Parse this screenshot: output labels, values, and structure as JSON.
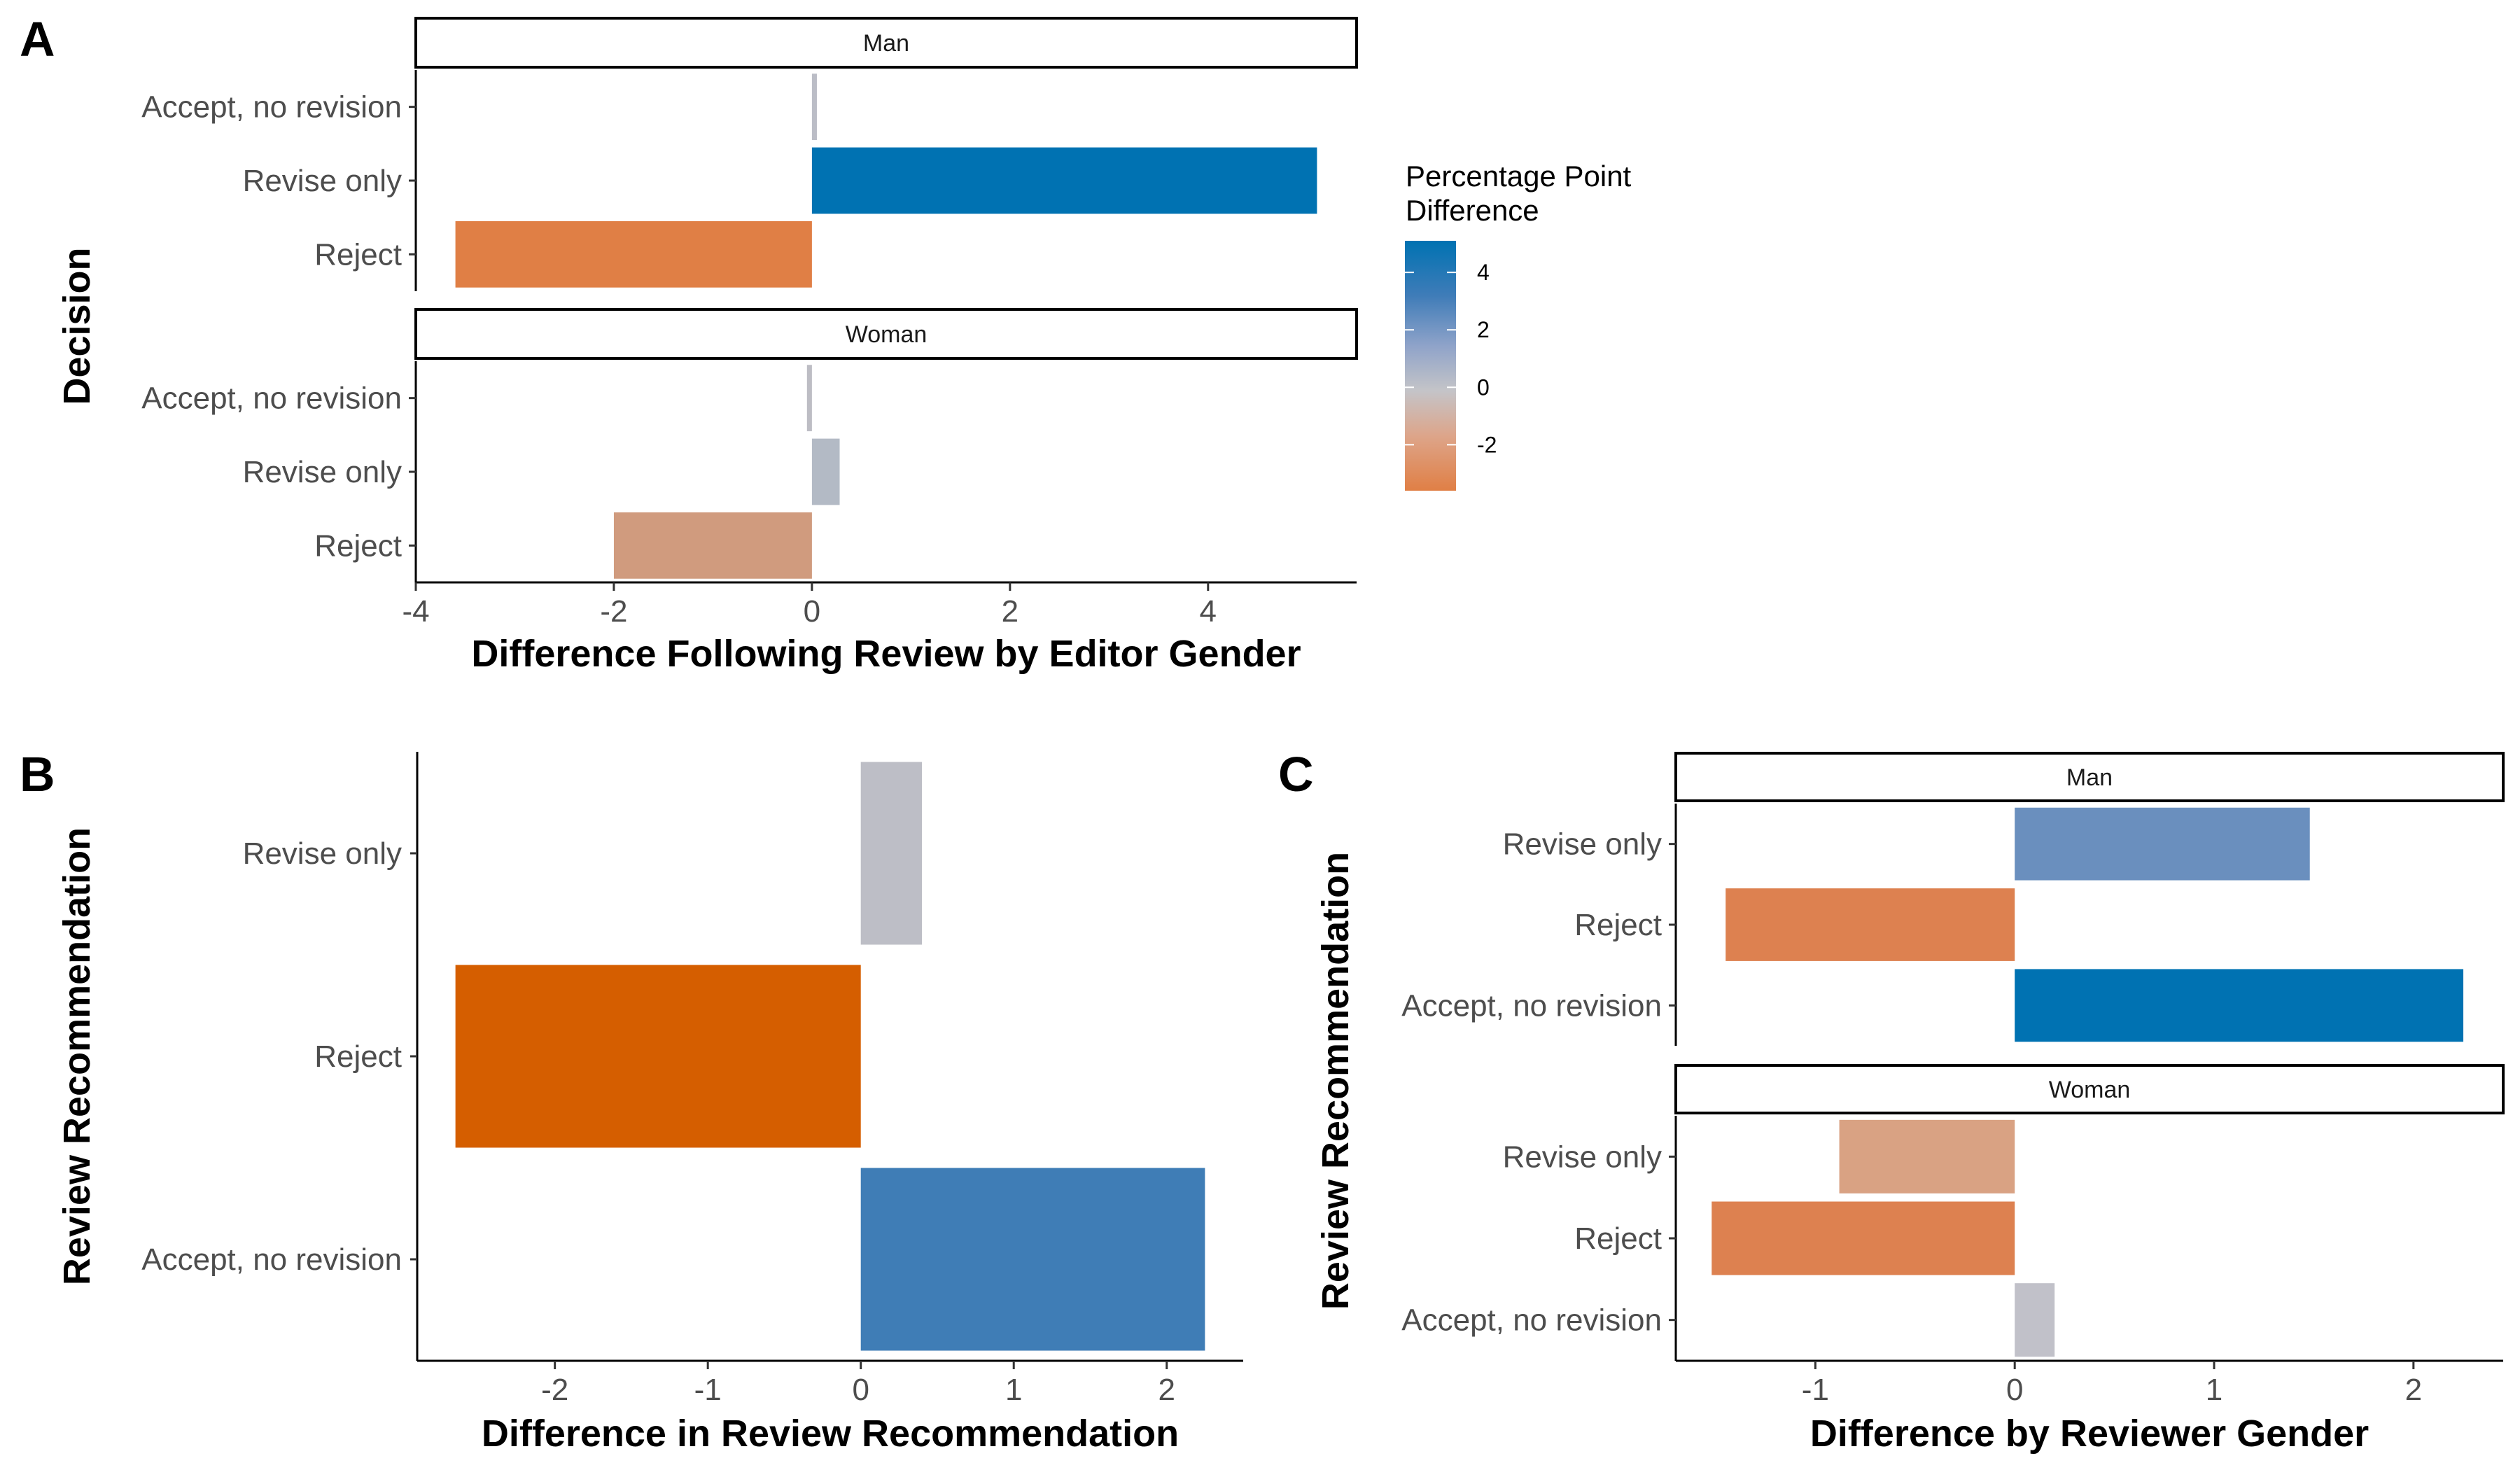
{
  "colors": {
    "negative_strong": "#D55E00",
    "neutral": "#BDBEC6",
    "positive_strong": "#0072B2"
  },
  "legend": {
    "title_line1": "Percentage Point",
    "title_line2": "Difference",
    "range": [
      -3.6,
      5.1
    ],
    "ticks": [
      4,
      2,
      0,
      -2
    ]
  },
  "chart_data": [
    {
      "panel": "A",
      "type": "bar",
      "orientation": "horizontal",
      "xlabel": "Difference Following Review by Editor Gender",
      "ylabel": "Decision",
      "xlim": [
        -4,
        5.5
      ],
      "xticks": [
        -4,
        -2,
        0,
        2,
        4
      ],
      "categories": [
        "Accept, no revision",
        "Revise only",
        "Reject"
      ],
      "facets": [
        {
          "label": "Man",
          "values": [
            0.05,
            5.1,
            -3.6
          ]
        },
        {
          "label": "Woman",
          "values": [
            -0.05,
            0.28,
            -2.0
          ]
        }
      ]
    },
    {
      "panel": "B",
      "type": "bar",
      "orientation": "horizontal",
      "xlabel": "Difference in Review Recommendation",
      "ylabel": "Review Recommendation",
      "xlim": [
        -2.9,
        2.5
      ],
      "xticks": [
        -2,
        -1,
        0,
        1,
        2
      ],
      "categories": [
        "Revise only",
        "Reject",
        "Accept, no revision"
      ],
      "values": [
        0.4,
        -2.65,
        2.25
      ]
    },
    {
      "panel": "C",
      "type": "bar",
      "orientation": "horizontal",
      "xlabel": "Difference by Reviewer Gender",
      "ylabel": "Review Recommendation",
      "xlim": [
        -1.7,
        2.45
      ],
      "xticks": [
        -1,
        0,
        1,
        2
      ],
      "categories": [
        "Revise only",
        "Reject",
        "Accept, no revision"
      ],
      "facets": [
        {
          "label": "Man",
          "values": [
            1.48,
            -1.45,
            2.25
          ]
        },
        {
          "label": "Woman",
          "values": [
            -0.88,
            -1.52,
            0.2
          ]
        }
      ]
    }
  ]
}
